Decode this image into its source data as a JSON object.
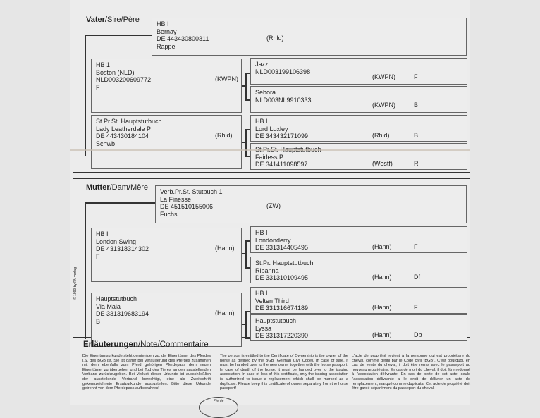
{
  "sire": {
    "title_bold": "Vater",
    "title_rest": "/Sire/Père",
    "main": {
      "lines": [
        "HB I",
        "Bernay",
        "DE 443430800311",
        "Rappe"
      ],
      "reg": "(Rhld)"
    },
    "parents": [
      {
        "lines": [
          "HB 1",
          "Boston (NLD)",
          "NLD003200609772",
          "F"
        ],
        "reg": "(KWPN)"
      },
      {
        "lines": [
          "St.Pr.St.  Hauptstutbuch",
          "Lady Leatherdale P",
          "DE 443430184104",
          "Schwb"
        ],
        "reg": "(Rhld)"
      }
    ],
    "grandparents": [
      {
        "lines": [
          "Jazz",
          "NLD003199106398"
        ],
        "reg": "(KWPN)",
        "color": "F"
      },
      {
        "lines": [
          "Sebora",
          "NLD003NL9910333"
        ],
        "reg": "(KWPN)",
        "color": "B"
      },
      {
        "lines": [
          "HB I",
          "Lord Loxley",
          "DE 343432171099"
        ],
        "reg": "(Rhld)",
        "color": "B"
      },
      {
        "lines": [
          "St.Pr.St.  Hauptstutbuch",
          "Fairless P",
          "DE 341411098597"
        ],
        "reg": "(Westf)",
        "color": "R"
      }
    ]
  },
  "dam": {
    "title_bold": "Mutter",
    "title_rest": "/Dam/Mère",
    "main": {
      "lines": [
        "Verb.Pr.St.  Stutbuch 1",
        "La Finesse",
        "DE 451510155006",
        "Fuchs"
      ],
      "reg": "(ZW)"
    },
    "parents": [
      {
        "lines": [
          "HB I",
          "London Swing",
          "DE 431318314302",
          "F"
        ],
        "reg": "(Hann)"
      },
      {
        "lines": [
          "Hauptstutbuch",
          "Via Mala",
          "DE 331319683194",
          "B"
        ],
        "reg": "(Hann)"
      }
    ],
    "grandparents": [
      {
        "lines": [
          "HB I",
          "Londonderry",
          "DE 331314405495"
        ],
        "reg": "(Hann)",
        "color": "F"
      },
      {
        "lines": [
          "St.Pr.  Hauptstutbuch",
          "Ribanna",
          "DE 331310109495"
        ],
        "reg": "(Hann)",
        "color": "Df"
      },
      {
        "lines": [
          "HB I",
          "Velten Third",
          "DE 331316674189"
        ],
        "reg": "(Hann)",
        "color": "F"
      },
      {
        "lines": [
          "Hauptstutbuch",
          "Lyssa",
          "DE 331317220390"
        ],
        "reg": "(Hann)",
        "color": "Db"
      }
    ]
  },
  "notes": {
    "title_bold": "Erläuterungen",
    "title_rest": "/Note/Commentaire",
    "de": "Die Eigentumsurkunde steht demjenigen zu, der Eigentümer des Pferdes i.S. des BGB ist. Sie ist daher bei Veräußerung des Pferdes zusammen mit dem ebenfalls zum Pferd gehörigen Pferdepass dem neuen Eigentümer zu übergeben und bei Tod des Tieres an den ausstellenden Verband zurückzugeben. Bei Verlust dieser Urkunde ist ausschließlich der ausstellende Verband berechtigt, eine als Zweitschrift gekennzeichnete Ersatzurkunde auszustellen. Bitte diese Urkunde getrennt von dem Pferdepass aufbewahren!",
    "en": "The person is entitled to the Certificate of Ownership is the owner of the horse as defined by the BGB (German Civil Code). In case of sale, it must be handed over to the new owner together with the horse passport. In case of death of the horse, it must be handed over to the issuing association. In case of loss of this certificate, only the issuing association is authorized to issue a replacement which shall be marked as a duplicate. Please keep this certificate of owner separately from the horse passport!",
    "fr": "L'acte de propriété revient à la personne qui est propriétaire du cheval, comme défini par le Code civil \"BGB\". C'est pourquoi, en cas de vente du cheval, il doit être remis avec le passeport au nouveau propriétaire. En cas de mort du cheval, il doit être redonné à l'association délivrante. En cas de perte de cet acte, seule l'association délivrante a le droit de délivrer un acte de remplacement, marqué comme duplicata. Cet acte de propriété doit être gardé séparément du passeport du cheval."
  },
  "side_text": "© 1999 by FN verlag",
  "stamp_text": "Pferde"
}
